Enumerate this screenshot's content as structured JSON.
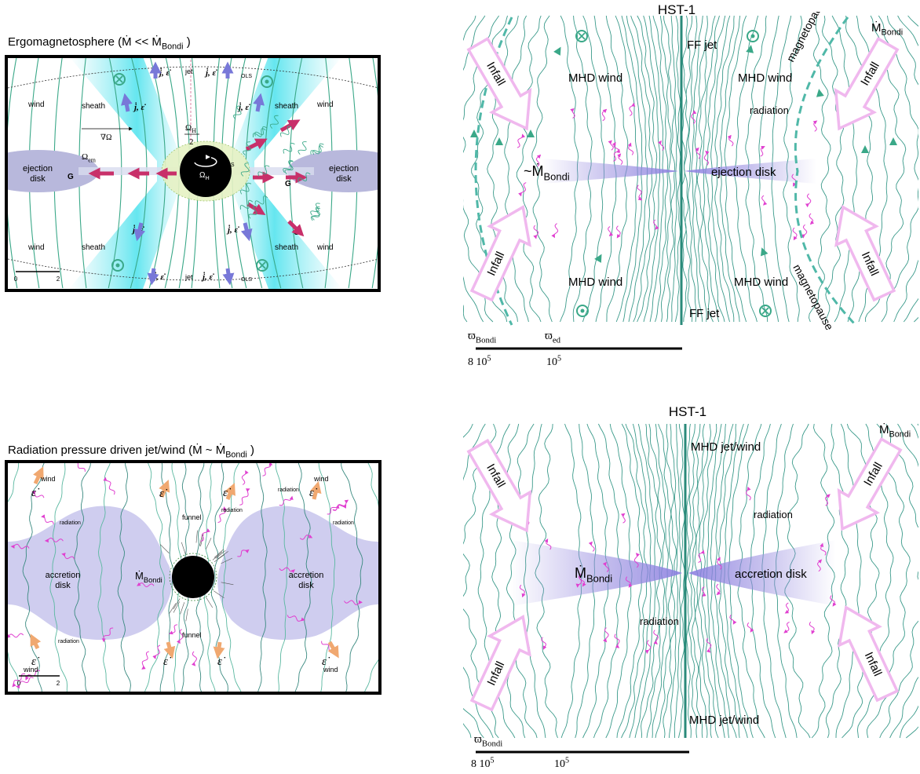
{
  "ergo": {
    "title": [
      "Ergomagnetosphere (Ṁ << Ṁ",
      "Bondi",
      " )"
    ],
    "wind": "wind",
    "sheath": "sheath",
    "jet": "jet",
    "ols": "OLS",
    "ils": "ILS",
    "ejection_disk": [
      "ejection",
      "disk"
    ],
    "g": "G",
    "omega_em": [
      "Ω",
      "em"
    ],
    "grad_omega": "∇Ω",
    "omega_h": [
      "Ω",
      "H"
    ],
    "omega_h_half": [
      "Ω",
      "H",
      "2"
    ],
    "flux": "j̇, ε̇",
    "scale": [
      "0",
      "2"
    ]
  },
  "radiation_panel": {
    "title": [
      "Radiation pressure driven jet/wind (Ṁ ~ Ṁ",
      "Bondi",
      " )"
    ],
    "wind": "wind",
    "edot": "ε̇",
    "radiation": "radiation",
    "funnel": "funnel",
    "accretion_disk": [
      "accretion",
      "disk"
    ],
    "mdot": [
      "Ṁ",
      "Bondi"
    ],
    "scale": [
      "0",
      "2"
    ]
  },
  "hst_top": {
    "title": "HST-1",
    "ff_jet": "FF jet",
    "mhd_wind": "MHD wind",
    "radiation": "radiation",
    "mdot_tilde": [
      "~Ṁ",
      "Bondi"
    ],
    "ejection_disk": "ejection disk",
    "magnetopause": "magnetopause",
    "mdot": [
      "Ṁ",
      "Bondi"
    ],
    "infall": "Infall",
    "scale_names": [
      [
        "ϖ",
        "Bondi"
      ],
      [
        "ϖ",
        "ed"
      ]
    ],
    "scale_values": [
      [
        "8 10",
        "5"
      ],
      [
        "10",
        "5"
      ]
    ]
  },
  "hst_bottom": {
    "title": "HST-1",
    "jet_wind": "MHD jet/wind",
    "mdot": [
      "Ṁ",
      "Bondi"
    ],
    "radiation": "radiation",
    "accretion_disk": "accretion disk",
    "infall": "Infall",
    "scale_names": [
      [
        "ϖ",
        "Bondi"
      ]
    ],
    "scale_values": [
      [
        "8 10",
        "5"
      ],
      [
        "10",
        "5"
      ]
    ]
  }
}
